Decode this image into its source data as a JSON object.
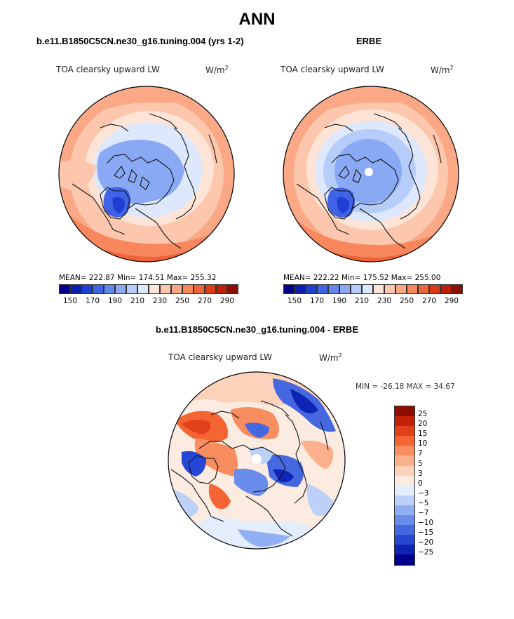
{
  "main_title": "ANN",
  "colors": {
    "abs_levels": [
      "#00008b",
      "#0a1fb0",
      "#1f3fd4",
      "#3f62e6",
      "#6187ef",
      "#8aa9f4",
      "#b6ccf9",
      "#dde8fc",
      "#fde4d6",
      "#fcc7ad",
      "#fba886",
      "#f8875e",
      "#ef6338",
      "#dc3b18",
      "#bc1f08",
      "#8e0d02"
    ],
    "diff_levels": [
      "#8e0d02",
      "#c42008",
      "#e0401a",
      "#f56534",
      "#f88e60",
      "#fab08c",
      "#fcd2bb",
      "#fbebe0",
      "#e4edfc",
      "#bcd0f8",
      "#91b0f3",
      "#6a8deb",
      "#4568e0",
      "#2647d4",
      "#0e24b4",
      "#00008b"
    ],
    "coast": "#111111"
  },
  "panels": [
    {
      "title": "b.e11.B1850C5CN.ne30_g16.tuning.004 (yrs 1-2)",
      "variable": "TOA clearsky upward LW",
      "units_base": "W/m",
      "units_exp": "2",
      "stats": "MEAN= 222.87   Min= 174.51   Max= 255.32",
      "colorbar_ticks": [
        "150",
        "170",
        "190",
        "210",
        "230",
        "250",
        "270",
        "290"
      ]
    },
    {
      "title": "ERBE",
      "variable": "TOA clearsky upward LW",
      "units_base": "W/m",
      "units_exp": "2",
      "stats": "MEAN= 222.22   Min= 175.52   Max= 255.00",
      "colorbar_ticks": [
        "150",
        "170",
        "190",
        "210",
        "230",
        "250",
        "270",
        "290"
      ]
    }
  ],
  "diff_panel": {
    "title": "b.e11.B1850C5CN.ne30_g16.tuning.004 - ERBE",
    "variable": "TOA clearsky upward LW",
    "units_base": "W/m",
    "units_exp": "2",
    "minmax": "MIN = -26.18 MAX =  34.67",
    "colorbar_labels": [
      "25",
      "20",
      "15",
      "10",
      "7",
      "5",
      "3",
      "0",
      "−3",
      "−5",
      "−7",
      "−10",
      "−15",
      "−20",
      "−25"
    ]
  },
  "chart_data": [
    {
      "type": "heatmap",
      "projection": "north polar stereographic",
      "title": "b.e11.B1850C5CN.ne30_g16.tuning.004 (yrs 1-2)",
      "variable": "TOA clearsky upward LW",
      "units": "W/m2",
      "mean": 222.87,
      "min": 174.51,
      "max": 255.32,
      "levels": [
        145,
        150,
        160,
        170,
        180,
        190,
        200,
        210,
        220,
        230,
        240,
        250,
        260,
        270,
        280,
        290,
        295
      ]
    },
    {
      "type": "heatmap",
      "projection": "north polar stereographic",
      "title": "ERBE",
      "variable": "TOA clearsky upward LW",
      "units": "W/m2",
      "mean": 222.22,
      "min": 175.52,
      "max": 255.0,
      "levels": [
        145,
        150,
        160,
        170,
        180,
        190,
        200,
        210,
        220,
        230,
        240,
        250,
        260,
        270,
        280,
        290,
        295
      ]
    },
    {
      "type": "heatmap",
      "projection": "north polar stereographic",
      "title": "b.e11.B1850C5CN.ne30_g16.tuning.004 - ERBE",
      "variable": "TOA clearsky upward LW",
      "units": "W/m2",
      "min": -26.18,
      "max": 34.67,
      "levels": [
        25,
        20,
        15,
        10,
        7,
        5,
        3,
        0,
        -3,
        -5,
        -7,
        -10,
        -15,
        -20,
        -25
      ]
    }
  ]
}
